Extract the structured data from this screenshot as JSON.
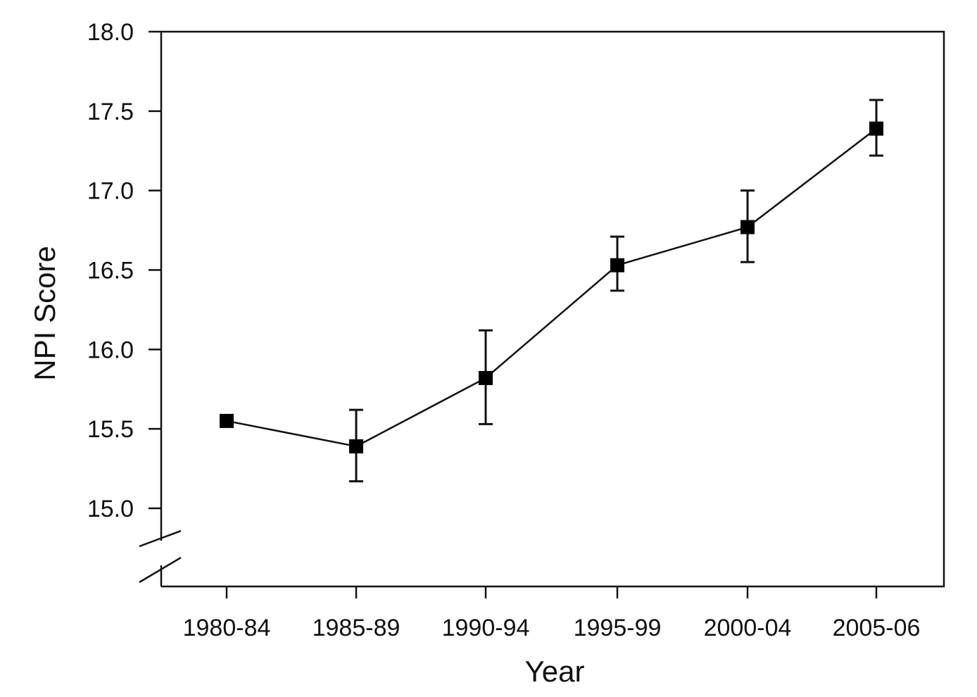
{
  "chart_data": {
    "type": "line",
    "title": "",
    "xlabel": "Year",
    "ylabel": "NPI Score",
    "categories": [
      "1980-84",
      "1985-89",
      "1990-94",
      "1995-99",
      "2000-04",
      "2005-06"
    ],
    "series": [
      {
        "values": [
          15.55,
          15.39,
          15.82,
          16.53,
          16.77,
          17.39
        ],
        "error_low": [
          null,
          15.17,
          15.53,
          16.37,
          16.55,
          17.22
        ],
        "error_high": [
          null,
          15.62,
          16.12,
          16.71,
          17.0,
          17.57
        ]
      }
    ],
    "ylim": [
      14.5,
      18.0
    ],
    "yticks": [
      15.0,
      15.5,
      16.0,
      16.5,
      17.0,
      17.5,
      18.0
    ],
    "ytick_labels": [
      "15.0",
      "15.5",
      "16.0",
      "16.5",
      "17.0",
      "17.5",
      "18.0"
    ],
    "y_axis_break": true,
    "grid": false,
    "marker": "square",
    "colors": {
      "line": "#111111",
      "marker": "#000000",
      "axis": "#111111"
    }
  }
}
